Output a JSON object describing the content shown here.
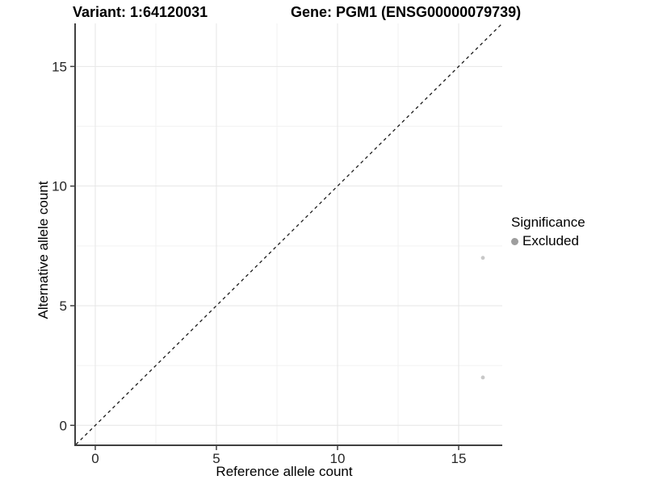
{
  "chart_data": {
    "type": "scatter",
    "title_left": "Variant: 1:64120031",
    "title_right": "Gene: PGM1 (ENSG00000079739)",
    "xlabel": "Reference allele count",
    "ylabel": "Alternative allele count",
    "xlim": [
      -0.8,
      16.8
    ],
    "ylim": [
      -0.8,
      16.8
    ],
    "x_ticks": [
      0,
      5,
      10,
      15
    ],
    "y_ticks": [
      0,
      5,
      10,
      15
    ],
    "x_minor_ticks": [
      2.5,
      7.5,
      12.5
    ],
    "y_minor_ticks": [
      2.5,
      7.5,
      12.5
    ],
    "grid": "major+minor",
    "reference_line": {
      "type": "identity",
      "slope": 1,
      "intercept": 0,
      "style": "dashed"
    },
    "series": [
      {
        "name": "Excluded",
        "marker": "circle",
        "color": "#c8c8c8",
        "points": [
          {
            "x": 16,
            "y": 7
          },
          {
            "x": 16,
            "y": 2
          }
        ]
      }
    ],
    "legend": {
      "title": "Significance",
      "position": "right",
      "items": [
        {
          "label": "Excluded",
          "color": "#9e9e9e"
        }
      ]
    }
  },
  "colors": {
    "background": "#ffffff",
    "grid_major": "#e6e6e6",
    "grid_minor": "#f2f2f2",
    "axis_line": "#404040",
    "tick_label": "#262626",
    "reference_line": "#1a1a1a"
  }
}
